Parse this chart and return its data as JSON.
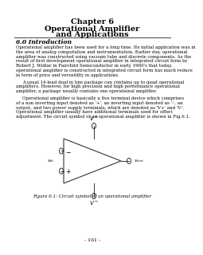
{
  "title_line1": "Chapter 6",
  "title_line2": "Operational Amplifier",
  "title_line3": "and Applications",
  "section_title": "6.0 Introduction",
  "paragraph1": "Operational amplifier has been used for a long time. Its initial application was in\nthe area of analog computation and instrumentation. Earlier day, operational\namplifier was constructed using vacuum tube and discrete components. As the\nresult of first development operational amplifier in integrated circuit form by\nRobert J. Widlar in Fairchild Semiconductor in early 1960's that today,\noperational amplifier is constructed in integrated circuit form has much reduce\nin term of price and versatility in applications.",
  "paragraph2": "A usual 14-lead dual in line package can contains up to quad operational\namplifiers. However, for high precision and high performance operational\namplifier, a package usually contains one operational amplifier.",
  "paragraph3": "Operational amplifier is basically a five terminal device which comprises\nof a non inverting input denoted as '+', an inverting input denoted as '-', an\noutput, and two power supply terminals, which are denoted as 'V+' and 'V-'.\nOperational amplifier usually have additional terminals used for offset\nadjustment. The circuit symbol of an operational amplifier is shown in Fig.6.1.",
  "figure_caption": "Figure 6.1: Circuit symbol of an operational amplifier",
  "page_number": "- 161 -",
  "background_color": "#ffffff",
  "text_color": "#000000"
}
